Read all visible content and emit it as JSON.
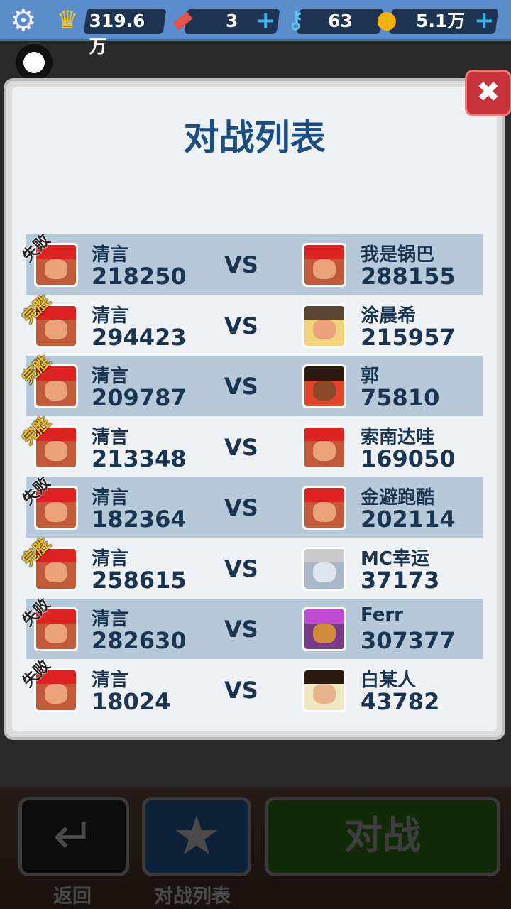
{
  "topbar": {
    "crown": "319.6万",
    "boards": "3",
    "keys": "63",
    "coins": "5.1万"
  },
  "icons": {
    "settings": "gear-icon",
    "crown": "crown-icon",
    "board": "hoverboard-icon",
    "key": "key-icon",
    "coin": "coin-icon",
    "add": "plus-icon",
    "close": "close-icon",
    "back": "return-arrow-icon",
    "list": "star-icon"
  },
  "panel": {
    "title": "对战列表",
    "vs_label": "VS"
  },
  "matches": [
    {
      "result": "失败",
      "win": false,
      "me": "清言",
      "my_score": "218250",
      "opponent": "我是锅巴",
      "opp_score": "288155"
    },
    {
      "result": "完胜",
      "win": true,
      "me": "清言",
      "my_score": "294423",
      "opponent": "涂晨希",
      "opp_score": "215957"
    },
    {
      "result": "完胜",
      "win": true,
      "me": "清言",
      "my_score": "209787",
      "opponent": "郭",
      "opp_score": "75810"
    },
    {
      "result": "完胜",
      "win": true,
      "me": "清言",
      "my_score": "213348",
      "opponent": "索南达哇",
      "opp_score": "169050"
    },
    {
      "result": "失败",
      "win": false,
      "me": "清言",
      "my_score": "182364",
      "opponent": "金避跑酷",
      "opp_score": "202114"
    },
    {
      "result": "完胜",
      "win": true,
      "me": "清言",
      "my_score": "258615",
      "opponent": "MC幸运",
      "opp_score": "37173"
    },
    {
      "result": "失败",
      "win": false,
      "me": "清言",
      "my_score": "282630",
      "opponent": "Ferr",
      "opp_score": "307377"
    },
    {
      "result": "失败",
      "win": false,
      "me": "清言",
      "my_score": "18024",
      "opponent": "白某人",
      "opp_score": "43782"
    }
  ],
  "bottom": {
    "back_label": "返回",
    "list_label": "对战列表",
    "battle_label": "对战"
  },
  "colors": {
    "topbar": "#5b8ccc",
    "title": "#1c4e80",
    "row_shade": "#b7c9d8",
    "close": "#c8333a",
    "win_badge": "#f2c21a"
  }
}
